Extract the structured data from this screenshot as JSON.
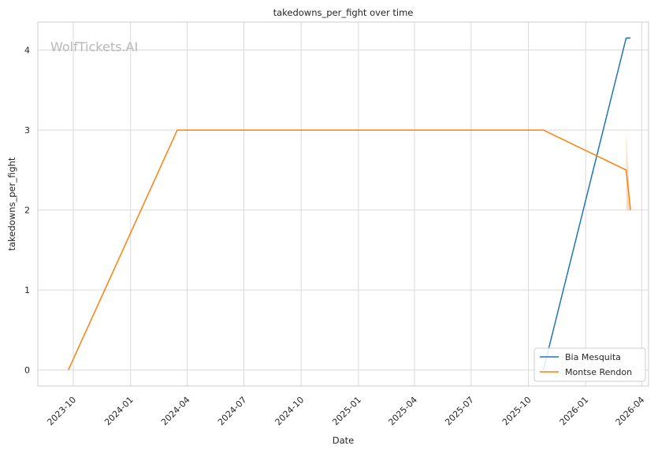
{
  "chart_data": {
    "type": "line",
    "title": "takedowns_per_fight over time",
    "xlabel": "Date",
    "ylabel": "takedowns_per_fight",
    "watermark": "WolfTickets.AI",
    "x_ticks": [
      "2023-10",
      "2024-01",
      "2024-04",
      "2024-07",
      "2024-10",
      "2025-01",
      "2025-04",
      "2025-07",
      "2025-10",
      "2026-01",
      "2026-04"
    ],
    "y_ticks": [
      "0",
      "1",
      "2",
      "3",
      "4"
    ],
    "xlim": [
      "2023-08-05",
      "2026-04-12"
    ],
    "ylim": [
      -0.2,
      4.35
    ],
    "grid": true,
    "legend_position": "lower-right",
    "series": [
      {
        "name": "Bia Mesquita",
        "color": "#1f77b4",
        "points": [
          {
            "x": "2025-10-25",
            "y": 0
          },
          {
            "x": "2026-03-07",
            "y": 4.15
          },
          {
            "x": "2026-03-14",
            "y": 4.15
          }
        ]
      },
      {
        "name": "Montse Rendon",
        "color": "#ff7f0e",
        "points": [
          {
            "x": "2023-09-23",
            "y": 0
          },
          {
            "x": "2024-03-16",
            "y": 3
          },
          {
            "x": "2025-10-25",
            "y": 3
          },
          {
            "x": "2026-03-07",
            "y": 2.5
          },
          {
            "x": "2026-03-14",
            "y": 2.0
          }
        ],
        "band": [
          {
            "x": "2026-03-07",
            "low": 2.0,
            "high": 3.0
          },
          {
            "x": "2026-03-14",
            "low": 2.0,
            "high": 2.0
          }
        ]
      }
    ]
  }
}
